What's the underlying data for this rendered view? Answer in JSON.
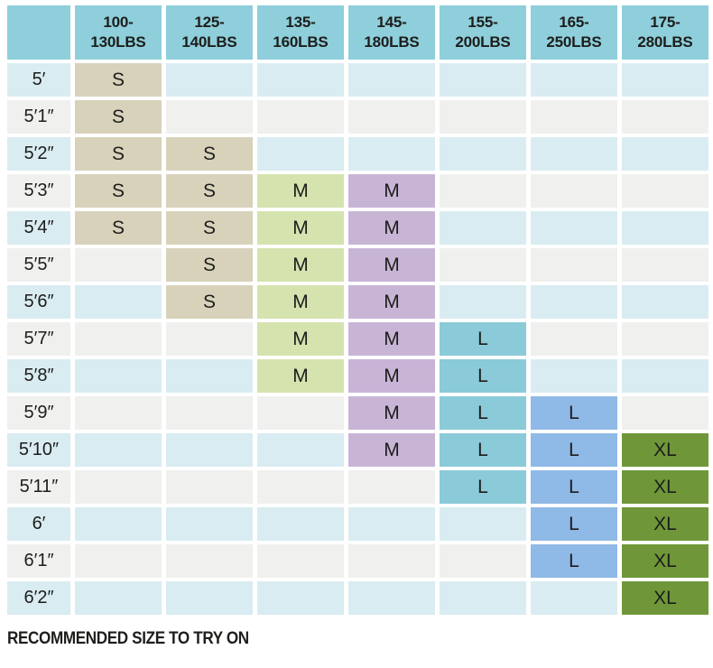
{
  "colors": {
    "background": "#ffffff",
    "text": "#1d1d1b",
    "header_bg": "#8ecfdb",
    "row_blue": "#d9ecf2",
    "row_gray": "#f0f0ef",
    "size_s": "#d8d2bb",
    "size_mg": "#d5e3ae",
    "size_mp": "#c8b5d6",
    "size_lt": "#8bcad8",
    "size_lb": "#8fb9e6",
    "size_xl": "#6f9739"
  },
  "header": {
    "corner": "",
    "cols": [
      {
        "line1": "100-",
        "line2": "130LBS"
      },
      {
        "line1": "125-",
        "line2": "140LBS"
      },
      {
        "line1": "135-",
        "line2": "160LBS"
      },
      {
        "line1": "145-",
        "line2": "180LBS"
      },
      {
        "line1": "155-",
        "line2": "200LBS"
      },
      {
        "line1": "165-",
        "line2": "250LBS"
      },
      {
        "line1": "175-",
        "line2": "280LBS"
      }
    ]
  },
  "body": {
    "row_labels": [
      "5′",
      "5′1″",
      "5′2″",
      "5′3″",
      "5′4″",
      "5′5″",
      "5′6″",
      "5′7″",
      "5′8″",
      "5′9″",
      "5′10″",
      "5′11″",
      "6′",
      "6′1″",
      "6′2″"
    ],
    "column_fill": [
      "s",
      "s",
      "mg",
      "mp",
      "lt",
      "lb",
      "xl"
    ],
    "matrix": [
      [
        "S",
        "",
        "",
        "",
        "",
        "",
        ""
      ],
      [
        "S",
        "",
        "",
        "",
        "",
        "",
        ""
      ],
      [
        "S",
        "S",
        "",
        "",
        "",
        "",
        ""
      ],
      [
        "S",
        "S",
        "M",
        "M",
        "",
        "",
        ""
      ],
      [
        "S",
        "S",
        "M",
        "M",
        "",
        "",
        ""
      ],
      [
        "",
        "S",
        "M",
        "M",
        "",
        "",
        ""
      ],
      [
        "",
        "S",
        "M",
        "M",
        "",
        "",
        ""
      ],
      [
        "",
        "",
        "M",
        "M",
        "L",
        "",
        ""
      ],
      [
        "",
        "",
        "M",
        "M",
        "L",
        "",
        ""
      ],
      [
        "",
        "",
        "",
        "M",
        "L",
        "L",
        ""
      ],
      [
        "",
        "",
        "",
        "M",
        "L",
        "L",
        "XL"
      ],
      [
        "",
        "",
        "",
        "",
        "L",
        "L",
        "XL"
      ],
      [
        "",
        "",
        "",
        "",
        "",
        "L",
        "XL"
      ],
      [
        "",
        "",
        "",
        "",
        "",
        "L",
        "XL"
      ],
      [
        "",
        "",
        "",
        "",
        "",
        "",
        "XL"
      ]
    ]
  },
  "footer": {
    "note": "RECOMMENDED SIZE TO TRY ON"
  },
  "chart_data": {
    "type": "table",
    "title": "",
    "columns": [
      "100-130LBS",
      "125-140LBS",
      "135-160LBS",
      "145-180LBS",
      "155-200LBS",
      "165-250LBS",
      "175-280LBS"
    ],
    "rows": [
      "5′",
      "5′1″",
      "5′2″",
      "5′3″",
      "5′4″",
      "5′5″",
      "5′6″",
      "5′7″",
      "5′8″",
      "5′9″",
      "5′10″",
      "5′11″",
      "6′",
      "6′1″",
      "6′2″"
    ],
    "values": [
      [
        "S",
        "",
        "",
        "",
        "",
        "",
        ""
      ],
      [
        "S",
        "",
        "",
        "",
        "",
        "",
        ""
      ],
      [
        "S",
        "S",
        "",
        "",
        "",
        "",
        ""
      ],
      [
        "S",
        "S",
        "M",
        "M",
        "",
        "",
        ""
      ],
      [
        "S",
        "S",
        "M",
        "M",
        "",
        "",
        ""
      ],
      [
        "",
        "S",
        "M",
        "M",
        "",
        "",
        ""
      ],
      [
        "",
        "S",
        "M",
        "M",
        "",
        "",
        ""
      ],
      [
        "",
        "",
        "M",
        "M",
        "L",
        "",
        ""
      ],
      [
        "",
        "",
        "M",
        "M",
        "L",
        "",
        ""
      ],
      [
        "",
        "",
        "",
        "M",
        "L",
        "L",
        ""
      ],
      [
        "",
        "",
        "",
        "M",
        "L",
        "L",
        "XL"
      ],
      [
        "",
        "",
        "",
        "",
        "L",
        "L",
        "XL"
      ],
      [
        "",
        "",
        "",
        "",
        "",
        "L",
        "XL"
      ],
      [
        "",
        "",
        "",
        "",
        "",
        "L",
        "XL"
      ],
      [
        "",
        "",
        "",
        "",
        "",
        "",
        "XL"
      ]
    ],
    "legend": [
      {
        "size": "S",
        "color": "#d8d2bb"
      },
      {
        "size": "M",
        "color": "#d5e3ae"
      },
      {
        "size": "M",
        "color": "#c8b5d6"
      },
      {
        "size": "L",
        "color": "#8bcad8"
      },
      {
        "size": "L",
        "color": "#8fb9e6"
      },
      {
        "size": "XL",
        "color": "#6f9739"
      }
    ],
    "annotations": [
      "RECOMMENDED SIZE TO TRY ON"
    ]
  }
}
